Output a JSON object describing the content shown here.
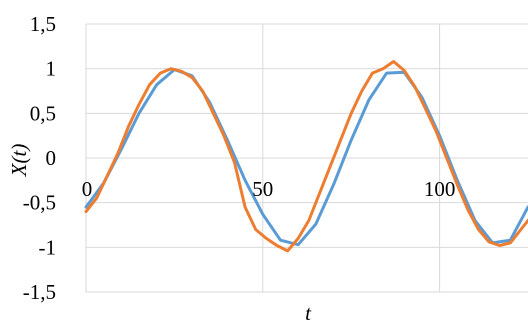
{
  "chart_data": {
    "type": "line",
    "title": "",
    "xlabel": "t",
    "ylabel": "X(t)",
    "xlim": [
      0,
      125
    ],
    "ylim": [
      -1.5,
      1.5
    ],
    "grid": true,
    "legend": "none",
    "x_ticks": [
      "0",
      "50",
      "100"
    ],
    "x_tick_values": [
      0,
      50,
      100
    ],
    "y_ticks": [
      "1,5",
      "1",
      "0,5",
      "0",
      "-0,5",
      "-1",
      "-1,5"
    ],
    "y_tick_values": [
      1.5,
      1,
      0.5,
      0,
      -0.5,
      -1,
      -1.5
    ],
    "colors": {
      "series_1": "#5b9bd5",
      "series_2": "#ed7d31",
      "grid": "#d9d9d9"
    },
    "series": [
      {
        "x": [
          0,
          5,
          10,
          15,
          20,
          25,
          30,
          35,
          40,
          45,
          50,
          55,
          60,
          65,
          70,
          75,
          80,
          85,
          90,
          95,
          100,
          105,
          110,
          115,
          120,
          125
        ],
        "values": [
          -0.55,
          -0.28,
          0.1,
          0.5,
          0.82,
          0.99,
          0.92,
          0.62,
          0.2,
          -0.25,
          -0.63,
          -0.92,
          -0.97,
          -0.74,
          -0.3,
          0.2,
          0.65,
          0.95,
          0.96,
          0.68,
          0.25,
          -0.25,
          -0.7,
          -0.95,
          -0.92,
          -0.55
        ]
      },
      {
        "x": [
          0,
          3,
          6,
          9,
          12,
          15,
          18,
          21,
          24,
          27,
          30,
          33,
          36,
          39,
          42,
          45,
          48,
          51,
          54,
          57,
          60,
          63,
          66,
          69,
          72,
          75,
          78,
          81,
          84,
          87,
          90,
          93,
          96,
          99,
          102,
          105,
          108,
          111,
          114,
          117,
          120,
          123,
          125
        ],
        "values": [
          -0.6,
          -0.45,
          -0.2,
          0.05,
          0.35,
          0.6,
          0.82,
          0.95,
          1.0,
          0.97,
          0.9,
          0.75,
          0.5,
          0.25,
          -0.05,
          -0.55,
          -0.8,
          -0.9,
          -0.98,
          -1.04,
          -0.9,
          -0.7,
          -0.4,
          -0.1,
          0.2,
          0.5,
          0.75,
          0.95,
          1.0,
          1.08,
          0.98,
          0.8,
          0.55,
          0.3,
          0.0,
          -0.3,
          -0.58,
          -0.8,
          -0.94,
          -0.98,
          -0.95,
          -0.8,
          -0.7
        ]
      }
    ]
  }
}
